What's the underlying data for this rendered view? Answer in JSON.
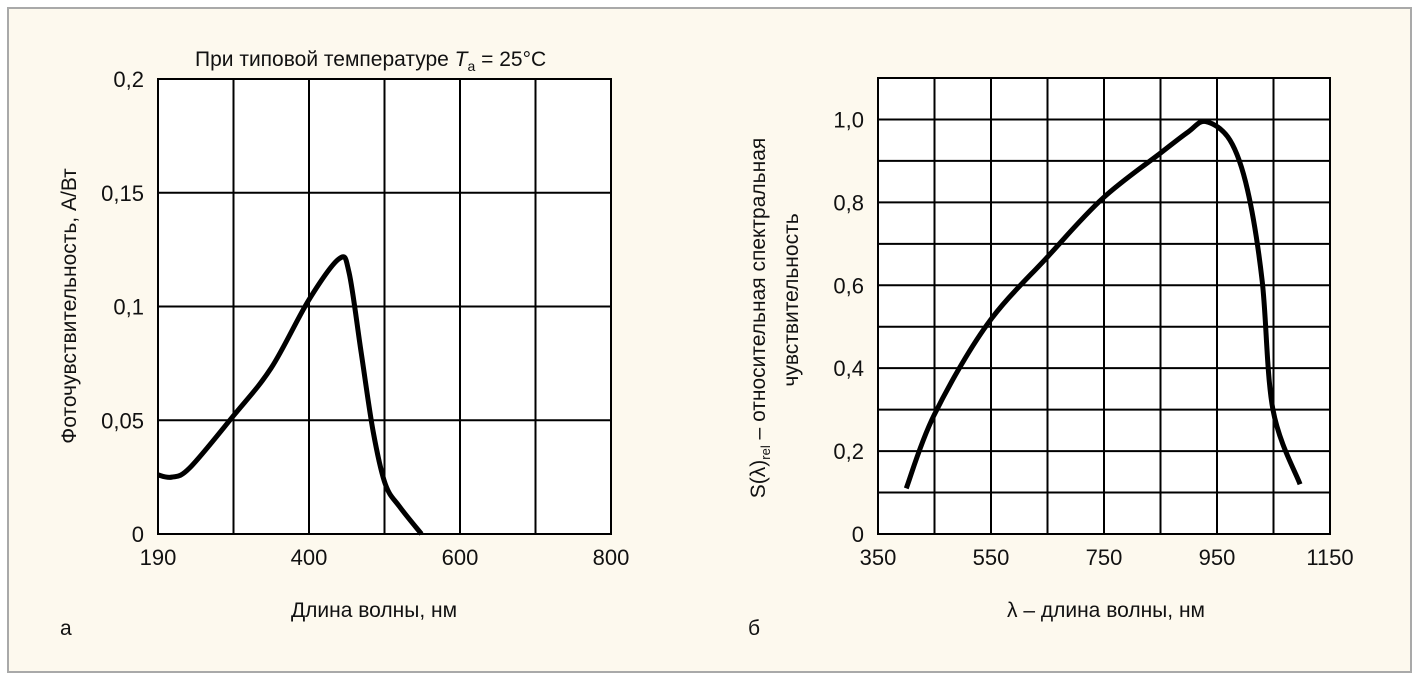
{
  "colors": {
    "background": "#fdf9ee",
    "border": "#a9a9a9",
    "line": "#000000"
  },
  "chart_data": [
    {
      "type": "line",
      "panel_label": "а",
      "title": "При типовой температуре ",
      "title_var": "T",
      "title_sub": "a",
      "title_tail": " = 25°C",
      "xlabel": "Длина волны, нм",
      "ylabel": "Фоточувствительность, А/Вт",
      "x_ticks": [
        190,
        300,
        400,
        500,
        600,
        700,
        800
      ],
      "x_tick_labels": [
        "190",
        "",
        "400",
        "",
        "600",
        "",
        "800"
      ],
      "y_ticks": [
        0,
        0.05,
        0.1,
        0.15,
        0.2
      ],
      "y_tick_labels": [
        "0",
        "0,05",
        "0,1",
        "0,15",
        "0,2"
      ],
      "xlim": [
        190,
        800
      ],
      "ylim": [
        0,
        0.2
      ],
      "grid": true,
      "series": [
        {
          "name": "photosensitivity",
          "x": [
            190,
            210,
            236,
            300,
            350,
            400,
            440,
            453,
            469,
            485,
            501,
            520,
            549
          ],
          "y": [
            0.026,
            0.025,
            0.029,
            0.052,
            0.073,
            0.103,
            0.121,
            0.115,
            0.08,
            0.045,
            0.022,
            0.012,
            0
          ]
        }
      ]
    },
    {
      "type": "line",
      "panel_label": "б",
      "xlabel": "λ – длина волны, нм",
      "ylabel_line1_main": "S(λ)",
      "ylabel_line1_sub": "rel",
      "ylabel_line1_tail": " – относительная спектральная",
      "ylabel_line2": "чувствительность",
      "x_ticks": [
        350,
        450,
        550,
        650,
        750,
        850,
        950,
        1050,
        1150
      ],
      "x_tick_labels": [
        "350",
        "",
        "550",
        "",
        "750",
        "",
        "950",
        "",
        "1150"
      ],
      "y_ticks": [
        0,
        0.1,
        0.2,
        0.3,
        0.4,
        0.5,
        0.6,
        0.7,
        0.8,
        0.9,
        1.0,
        1.1
      ],
      "y_tick_labels": [
        "0",
        "",
        "0,2",
        "",
        "0,4",
        "",
        "0,6",
        "",
        "0,8",
        "",
        "1,0",
        ""
      ],
      "xlim": [
        350,
        1150
      ],
      "ylim": [
        0,
        1.1
      ],
      "grid": true,
      "series": [
        {
          "name": "relative spectral sensitivity",
          "x": [
            400,
            449,
            543,
            651,
            748,
            851,
            899,
            930,
            973,
            1004,
            1030,
            1049,
            1097
          ],
          "y": [
            0.11,
            0.286,
            0.505,
            0.67,
            0.81,
            0.92,
            0.97,
            0.995,
            0.95,
            0.83,
            0.61,
            0.3,
            0.12
          ]
        }
      ]
    }
  ]
}
